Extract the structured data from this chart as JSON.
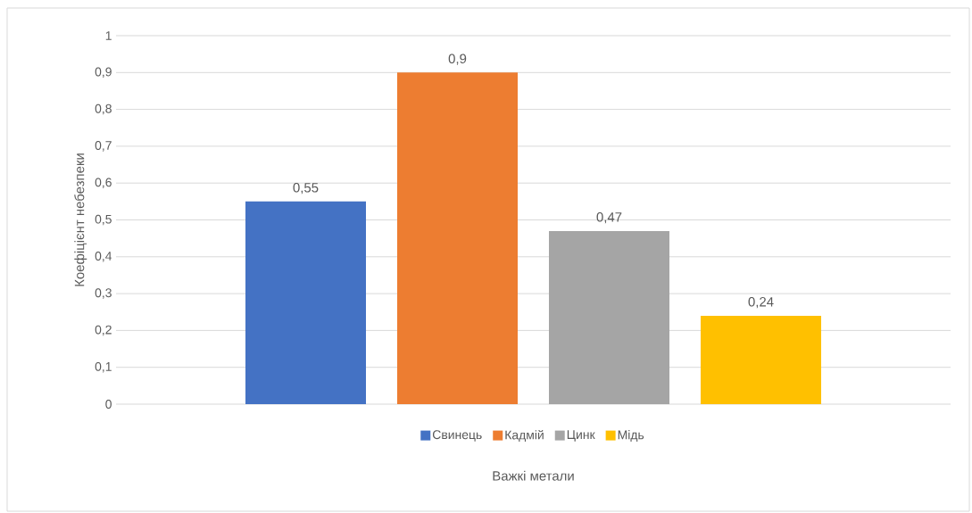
{
  "chart_data": {
    "type": "bar",
    "ylabel": "Коефіцієнт небезпеки",
    "xlabel": "Важкі метали",
    "categories": [
      null
    ],
    "series": [
      {
        "name": "Свинець",
        "color": "#4472c4",
        "values": [
          0.55
        ],
        "value_labels": [
          "0,55"
        ]
      },
      {
        "name": "Кадмій",
        "color": "#ed7d31",
        "values": [
          0.9
        ],
        "value_labels": [
          "0,9"
        ]
      },
      {
        "name": "Цинк",
        "color": "#a5a5a5",
        "values": [
          0.47
        ],
        "value_labels": [
          "0,47"
        ]
      },
      {
        "name": "Мідь",
        "color": "#ffc000",
        "values": [
          0.24
        ],
        "value_labels": [
          "0,24"
        ]
      }
    ],
    "ylim": [
      0,
      1
    ],
    "yticks": [
      0,
      {
        "value": 0.1,
        "label": "0,1"
      },
      {
        "value": 0.2,
        "label": "0,2"
      },
      {
        "value": 0.3,
        "label": "0,3"
      },
      {
        "value": 0.4,
        "label": "0,4"
      },
      {
        "value": 0.5,
        "label": "0,5"
      },
      {
        "value": 0.6,
        "label": "0,6"
      },
      {
        "value": 0.7,
        "label": "0,7"
      },
      {
        "value": 0.8,
        "label": "0,8"
      },
      {
        "value": 0.9,
        "label": "0,9"
      },
      1
    ],
    "grid": "y",
    "legend": "bottom"
  }
}
